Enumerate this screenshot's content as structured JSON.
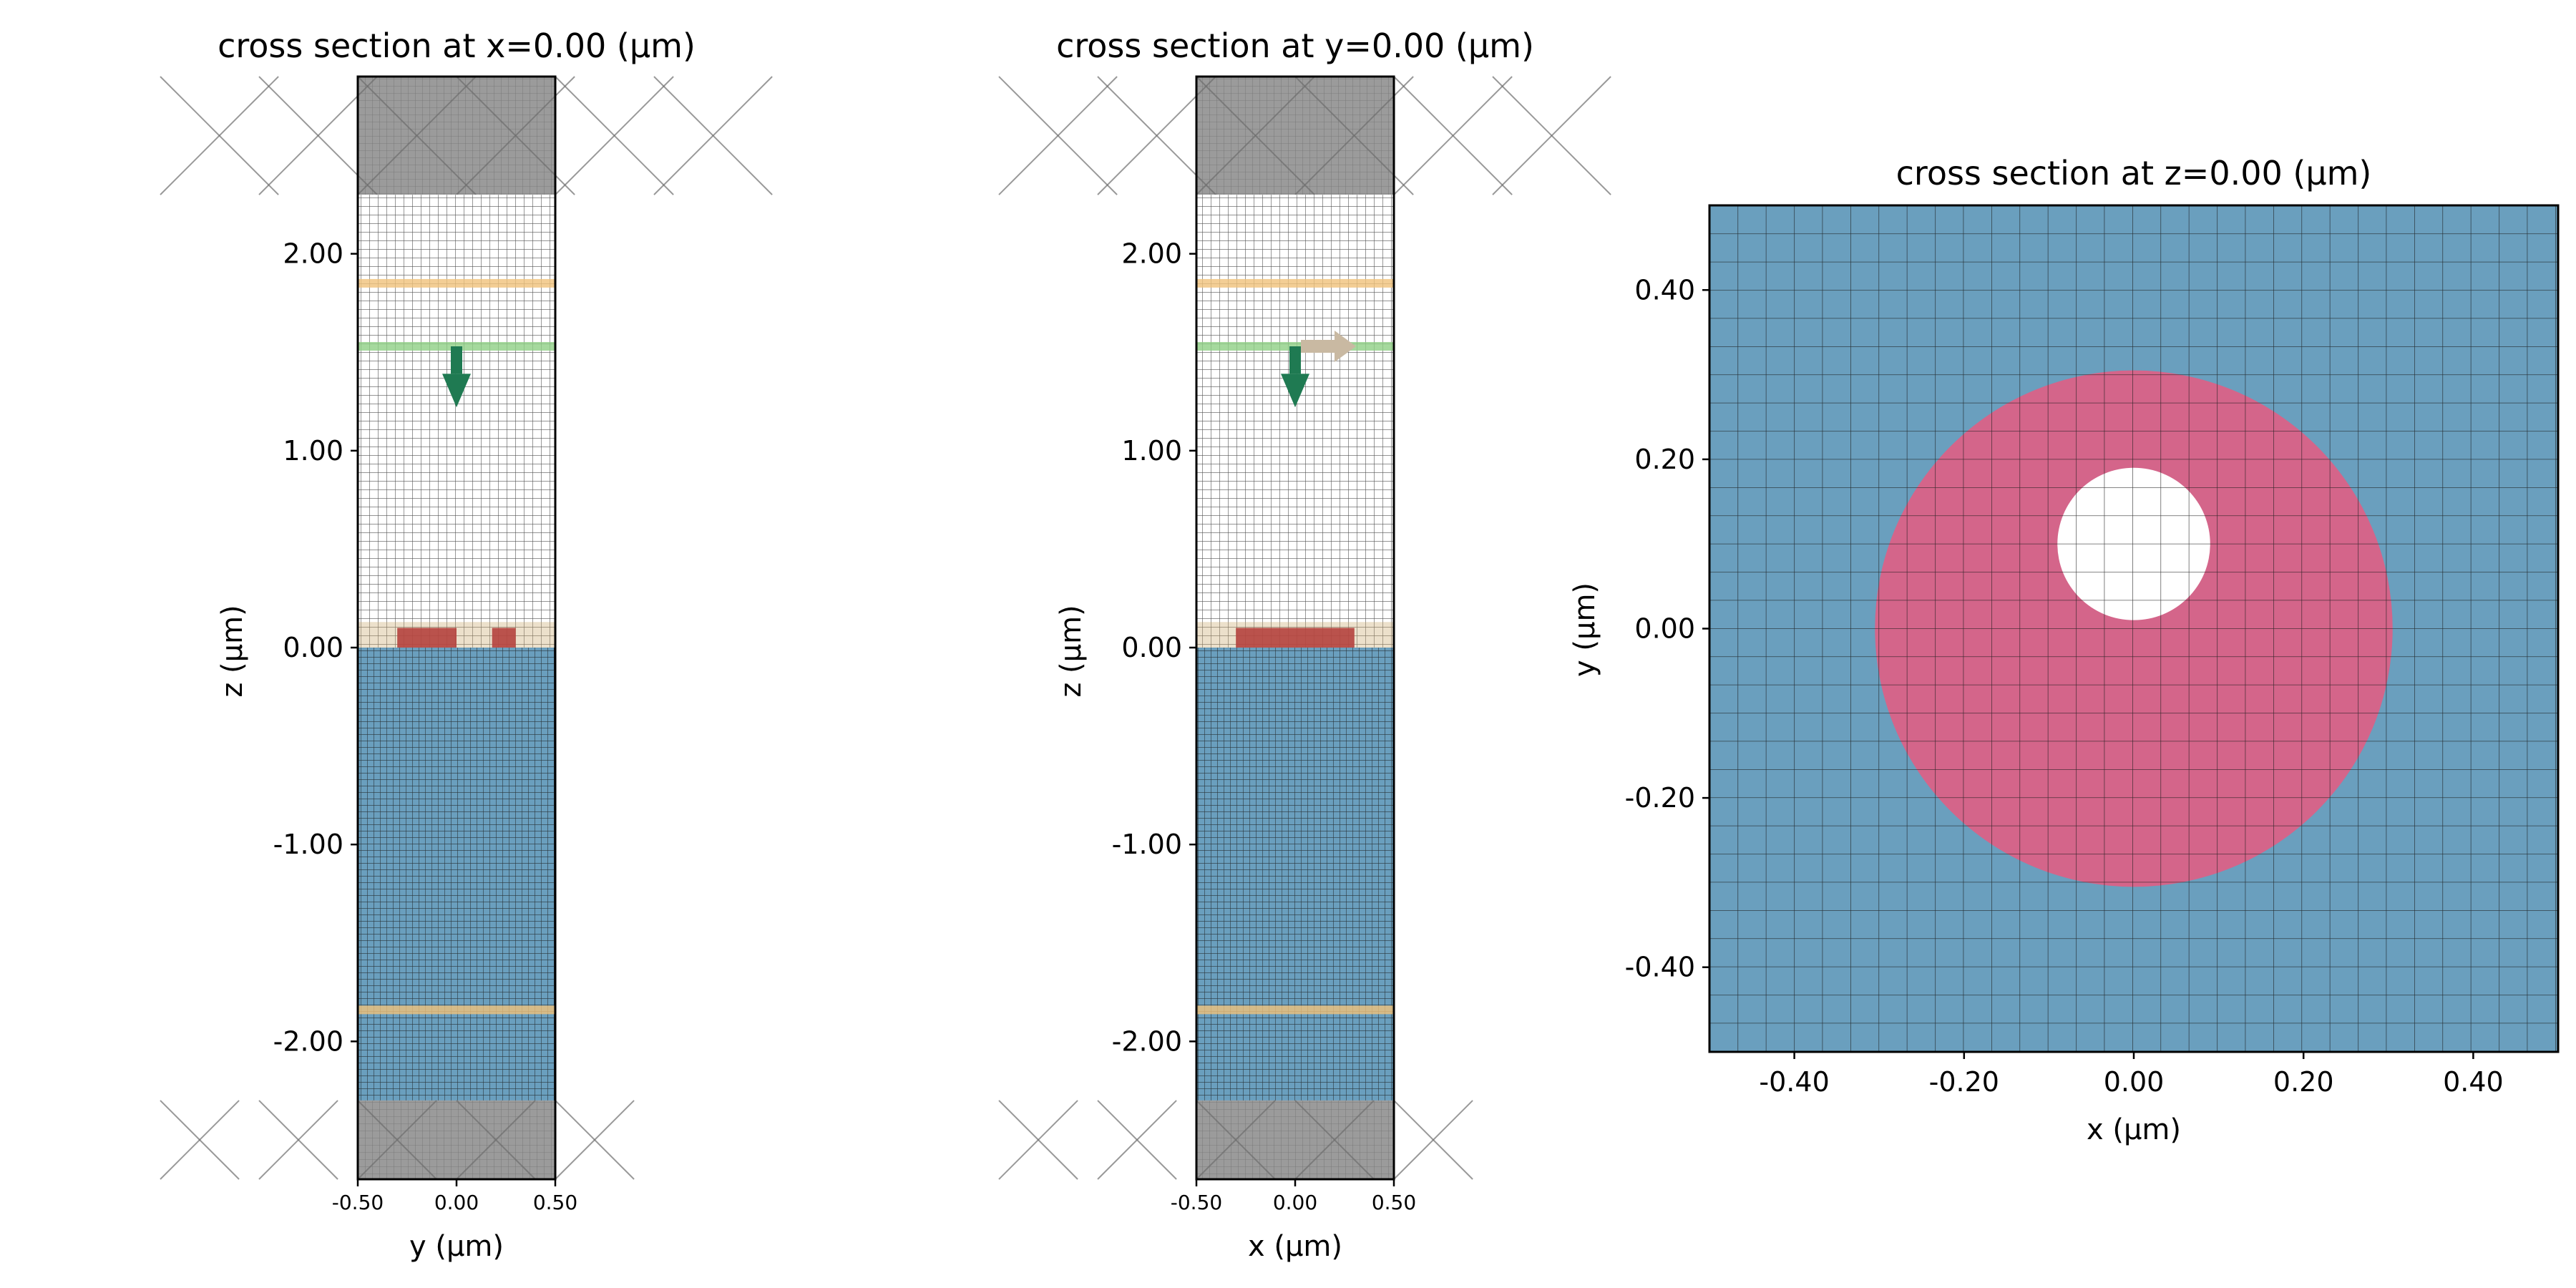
{
  "colors": {
    "pml": "#9b9b9b",
    "air": "#ffffff",
    "substrate": "#6a9fbe",
    "structure_red": "#b5433e",
    "disk": "#d4658a",
    "hole": "#ffffff",
    "source_green": "#1f7a52",
    "monitor_orange": "#f0c27a",
    "monitor_green": "#8ecf85",
    "bloch_arrow": "#c9b9a2",
    "grid": "#1a1a1a"
  },
  "chart_data": [
    {
      "type": "simulation-cross-section",
      "title": "cross section at x=0.00 (μm)",
      "xlabel": "y (μm)",
      "ylabel": "z (μm)",
      "xlim": [
        -0.5,
        0.5
      ],
      "ylim": [
        -2.7,
        2.9
      ],
      "xticks": [
        "-0.50",
        "0.00",
        "0.50"
      ],
      "xtick_values": [
        -0.5,
        0.0,
        0.5
      ],
      "yticks": [
        "-2.00",
        "-1.00",
        "0.00",
        "1.00",
        "2.00"
      ],
      "ytick_values": [
        -2.0,
        -1.0,
        0.0,
        1.0,
        2.0
      ],
      "regions": [
        {
          "name": "pml-top",
          "z": [
            2.3,
            2.9
          ]
        },
        {
          "name": "air",
          "z": [
            0.0,
            2.3
          ]
        },
        {
          "name": "substrate",
          "z": [
            -2.3,
            0.0
          ]
        },
        {
          "name": "pml-bottom",
          "z": [
            -2.7,
            -2.3
          ]
        }
      ],
      "structures": [
        {
          "name": "slab-segment",
          "y": [
            -0.3,
            0.0
          ],
          "z": [
            0.0,
            0.1
          ]
        },
        {
          "name": "slab-segment",
          "y": [
            0.18,
            0.3
          ],
          "z": [
            0.0,
            0.1
          ]
        }
      ],
      "monitors": [
        {
          "name": "flux-monitor-top",
          "z": 1.85,
          "color": "monitor_orange"
        },
        {
          "name": "source-plane",
          "z": 1.53,
          "color": "monitor_green"
        },
        {
          "name": "flux-monitor-bottom",
          "z": -1.84,
          "color": "monitor_orange"
        }
      ],
      "source": {
        "y": 0.0,
        "z_start": 1.53,
        "z_end": 1.22
      },
      "bloch_arrow": false
    },
    {
      "type": "simulation-cross-section",
      "title": "cross section at y=0.00 (μm)",
      "xlabel": "x (μm)",
      "ylabel": "z (μm)",
      "xlim": [
        -0.5,
        0.5
      ],
      "ylim": [
        -2.7,
        2.9
      ],
      "xticks": [
        "-0.50",
        "0.00",
        "0.50"
      ],
      "xtick_values": [
        -0.5,
        0.0,
        0.5
      ],
      "yticks": [
        "-2.00",
        "-1.00",
        "0.00",
        "1.00",
        "2.00"
      ],
      "ytick_values": [
        -2.0,
        -1.0,
        0.0,
        1.0,
        2.0
      ],
      "regions": [
        {
          "name": "pml-top",
          "z": [
            2.3,
            2.9
          ]
        },
        {
          "name": "air",
          "z": [
            0.0,
            2.3
          ]
        },
        {
          "name": "substrate",
          "z": [
            -2.3,
            0.0
          ]
        },
        {
          "name": "pml-bottom",
          "z": [
            -2.7,
            -2.3
          ]
        }
      ],
      "structures": [
        {
          "name": "slab-segment",
          "y": [
            -0.3,
            0.3
          ],
          "z": [
            0.0,
            0.1
          ]
        }
      ],
      "monitors": [
        {
          "name": "flux-monitor-top",
          "z": 1.85,
          "color": "monitor_orange"
        },
        {
          "name": "source-plane",
          "z": 1.53,
          "color": "monitor_green"
        },
        {
          "name": "flux-monitor-bottom",
          "z": -1.84,
          "color": "monitor_orange"
        }
      ],
      "source": {
        "y": 0.0,
        "z_start": 1.53,
        "z_end": 1.22
      },
      "bloch_arrow": true
    },
    {
      "type": "simulation-cross-section",
      "title": "cross section at z=0.00 (μm)",
      "xlabel": "x (μm)",
      "ylabel": "y (μm)",
      "xlim": [
        -0.5,
        0.5
      ],
      "ylim": [
        -0.5,
        0.5
      ],
      "xticks": [
        "-0.40",
        "-0.20",
        "0.00",
        "0.20",
        "0.40"
      ],
      "xtick_values": [
        -0.4,
        -0.2,
        0.0,
        0.2,
        0.4
      ],
      "yticks": [
        "-0.40",
        "-0.20",
        "0.00",
        "0.20",
        "0.40"
      ],
      "ytick_values": [
        -0.4,
        -0.2,
        0.0,
        0.2,
        0.4
      ],
      "disk": {
        "cx": 0.0,
        "cy": 0.0,
        "r": 0.305
      },
      "hole": {
        "cx": 0.0,
        "cy": 0.1,
        "r": 0.09
      }
    }
  ]
}
